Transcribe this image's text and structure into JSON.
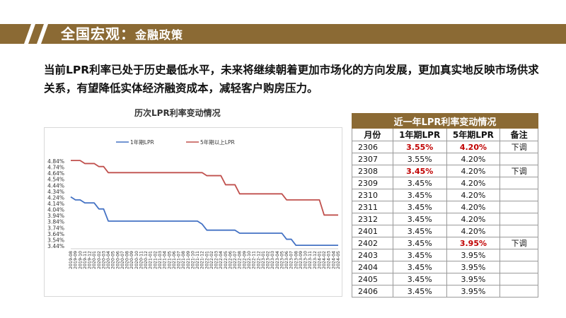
{
  "header": {
    "title": "全国宏观：",
    "subtitle": "金融政策"
  },
  "intro": {
    "text": "当前LPR利率已处于历史最低水平，未来将继续朝着更加市场化的方向发展，更加真实地反映市场供求关系，有望降低实体经济融资成本，减轻客户购房压力。"
  },
  "colors": {
    "brand": "#8b6a34",
    "series_1y": "#4472c4",
    "series_5y": "#c0504d",
    "highlight": "#c00000"
  },
  "chart_data": {
    "type": "line",
    "title": "历次LPR利率变动情况",
    "xlabel": "",
    "ylabel": "",
    "grid": false,
    "legend_position": "top",
    "ylim": [
      3.44,
      4.84
    ],
    "yticks": [
      "4.84%",
      "4.74%",
      "4.64%",
      "4.54%",
      "4.44%",
      "4.34%",
      "4.24%",
      "4.14%",
      "4.04%",
      "3.94%",
      "3.84%",
      "3.74%",
      "3.64%",
      "3.54%",
      "3.44%"
    ],
    "x": [
      "2019-08",
      "2019-09",
      "2019-10",
      "2019-11",
      "2019-12",
      "2020-01",
      "2020-02",
      "2020-03",
      "2020-04",
      "2020-05",
      "2020-06",
      "2020-07",
      "2020-08",
      "2020-09",
      "2020-10",
      "2020-11",
      "2020-12",
      "2021-01",
      "2021-02",
      "2021-03",
      "2021-04",
      "2021-05",
      "2021-06",
      "2021-07",
      "2021-08",
      "2021-09",
      "2021-10",
      "2021-11",
      "2021-12",
      "2022-01",
      "2022-02",
      "2022-03",
      "2022-04",
      "2022-05",
      "2022-06",
      "2022-07",
      "2022-08",
      "2022-09",
      "2022-10",
      "2022-11",
      "2022-12",
      "2023-01",
      "2023-02",
      "2023-03",
      "2023-04",
      "2023-05",
      "2023-06",
      "2023-07",
      "2023-08",
      "2023-09",
      "2023-10",
      "2023-11",
      "2023-12",
      "2024-01",
      "2024-02",
      "2024-03",
      "2024-04",
      "2024-05"
    ],
    "series": [
      {
        "name": "1年期LPR",
        "values": [
          4.25,
          4.2,
          4.2,
          4.15,
          4.15,
          4.15,
          4.05,
          4.05,
          3.85,
          3.85,
          3.85,
          3.85,
          3.85,
          3.85,
          3.85,
          3.85,
          3.85,
          3.85,
          3.85,
          3.85,
          3.85,
          3.85,
          3.85,
          3.85,
          3.85,
          3.85,
          3.85,
          3.85,
          3.8,
          3.7,
          3.7,
          3.7,
          3.7,
          3.7,
          3.7,
          3.7,
          3.65,
          3.65,
          3.65,
          3.65,
          3.65,
          3.65,
          3.65,
          3.65,
          3.65,
          3.65,
          3.55,
          3.55,
          3.45,
          3.45,
          3.45,
          3.45,
          3.45,
          3.45,
          3.45,
          3.45,
          3.45,
          3.45
        ]
      },
      {
        "name": "5年期以上LPR",
        "values": [
          4.85,
          4.85,
          4.85,
          4.8,
          4.8,
          4.8,
          4.75,
          4.75,
          4.65,
          4.65,
          4.65,
          4.65,
          4.65,
          4.65,
          4.65,
          4.65,
          4.65,
          4.65,
          4.65,
          4.65,
          4.65,
          4.65,
          4.65,
          4.65,
          4.65,
          4.65,
          4.65,
          4.65,
          4.65,
          4.6,
          4.6,
          4.6,
          4.6,
          4.45,
          4.45,
          4.45,
          4.3,
          4.3,
          4.3,
          4.3,
          4.3,
          4.3,
          4.3,
          4.3,
          4.3,
          4.3,
          4.2,
          4.2,
          4.2,
          4.2,
          4.2,
          4.2,
          4.2,
          4.2,
          3.95,
          3.95,
          3.95,
          3.95
        ]
      }
    ]
  },
  "table": {
    "title": "近一年LPR利率变动情况",
    "headers": [
      "月份",
      "1年期LPR",
      "5年期LPR",
      "备注"
    ],
    "rows": [
      {
        "month": "2306",
        "one": "3.55%",
        "five": "4.20%",
        "note": "下调",
        "one_hl": true,
        "five_hl": true
      },
      {
        "month": "2307",
        "one": "3.55%",
        "five": "4.20%",
        "note": "",
        "one_hl": false,
        "five_hl": false
      },
      {
        "month": "2308",
        "one": "3.45%",
        "five": "4.20%",
        "note": "下调",
        "one_hl": true,
        "five_hl": false
      },
      {
        "month": "2309",
        "one": "3.45%",
        "five": "4.20%",
        "note": "",
        "one_hl": false,
        "five_hl": false
      },
      {
        "month": "2310",
        "one": "3.45%",
        "five": "4.20%",
        "note": "",
        "one_hl": false,
        "five_hl": false
      },
      {
        "month": "2311",
        "one": "3.45%",
        "five": "4.20%",
        "note": "",
        "one_hl": false,
        "five_hl": false
      },
      {
        "month": "2312",
        "one": "3.45%",
        "five": "4.20%",
        "note": "",
        "one_hl": false,
        "five_hl": false
      },
      {
        "month": "2401",
        "one": "3.45%",
        "five": "4.20%",
        "note": "",
        "one_hl": false,
        "five_hl": false
      },
      {
        "month": "2402",
        "one": "3.45%",
        "five": "3.95%",
        "note": "下调",
        "one_hl": false,
        "five_hl": true
      },
      {
        "month": "2403",
        "one": "3.45%",
        "five": "3.95%",
        "note": "",
        "one_hl": false,
        "five_hl": false
      },
      {
        "month": "2404",
        "one": "3.45%",
        "five": "3.95%",
        "note": "",
        "one_hl": false,
        "five_hl": false
      },
      {
        "month": "2405",
        "one": "3.45%",
        "five": "3.95%",
        "note": "",
        "one_hl": false,
        "five_hl": false
      },
      {
        "month": "2406",
        "one": "3.45%",
        "five": "3.95%",
        "note": "",
        "one_hl": false,
        "five_hl": false
      }
    ]
  }
}
